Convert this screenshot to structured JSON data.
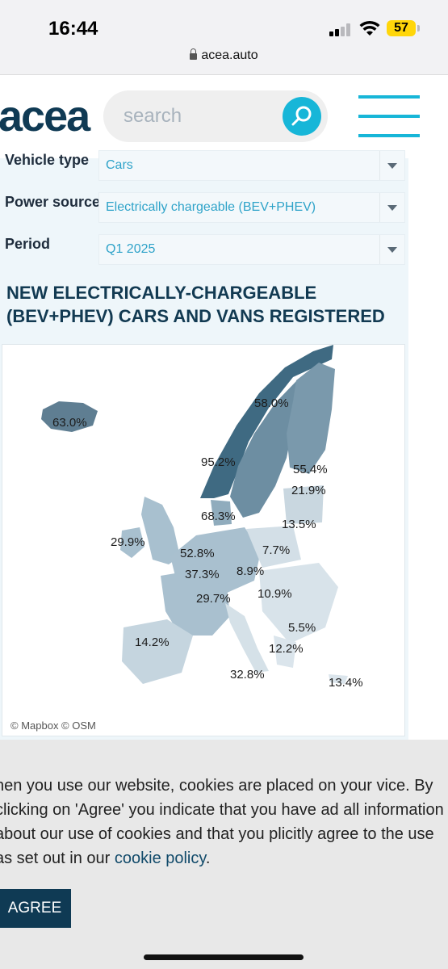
{
  "status_bar": {
    "time": "16:44",
    "battery": "57",
    "url": "acea.auto"
  },
  "header": {
    "logo": "acea",
    "search_placeholder": "search"
  },
  "filters": [
    {
      "label": "Vehicle type",
      "value": "Cars"
    },
    {
      "label": "Power source",
      "value": "Electrically chargeable (BEV+PHEV)"
    },
    {
      "label": "Period",
      "value": "Q1 2025"
    }
  ],
  "section_title": "NEW ELECTRICALLY-CHARGEABLE (BEV+PHEV) CARS AND VANS REGISTERED",
  "map": {
    "credit": "© Mapbox  © OSM",
    "labels": [
      "63.0%",
      "58.0%",
      "55.4%",
      "95.2%",
      "21.9%",
      "68.3%",
      "13.5%",
      "29.9%",
      "52.8%",
      "7.7%",
      "37.3%",
      "8.9%",
      "29.7%",
      "10.9%",
      "5.5%",
      "14.2%",
      "12.2%",
      "32.8%",
      "13.4%"
    ]
  },
  "cookie": {
    "text": "hen you use our website, cookies are placed on your vice. By clicking on 'Agree' you indicate that you have ad all information about our use of cookies and that you plicitly agree to the use as set out in our ",
    "link": "cookie policy",
    "after_link": ".",
    "agree": "AGREE"
  },
  "colors": {
    "accent": "#17b6d8",
    "brand": "#0f3a54",
    "link": "#2fa3c9"
  }
}
